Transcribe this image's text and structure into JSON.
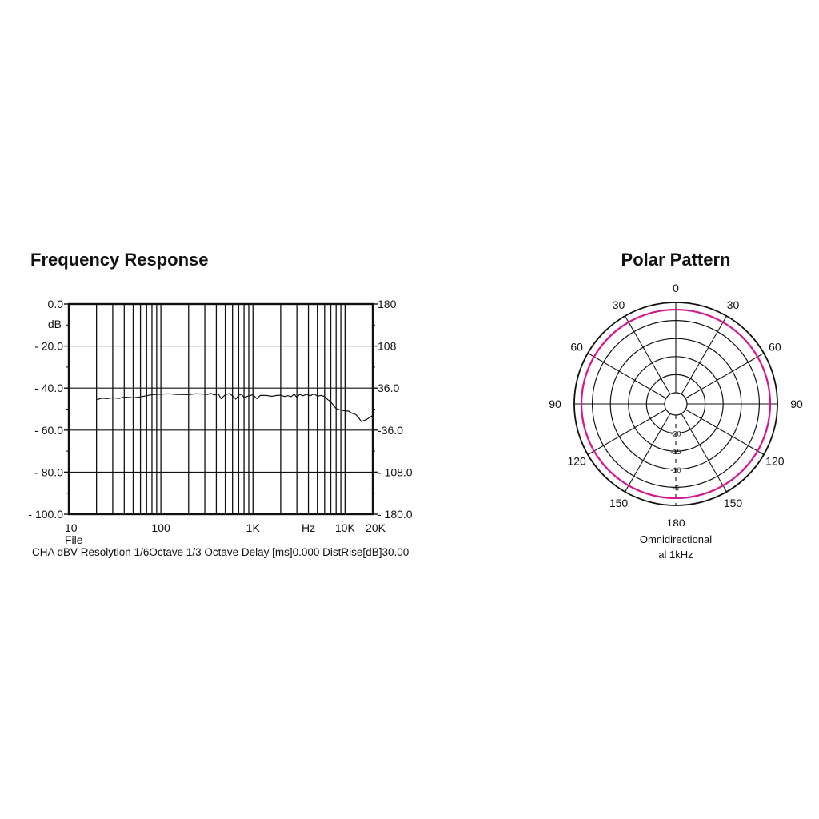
{
  "frequency_response": {
    "title": "Frequency Response",
    "footer": "CHA dBV Resolytion 1/6Octave 1/3 Octave Delay [ms]0.000 DistRise[dB]30.00",
    "file_label": "File"
  },
  "polar_pattern": {
    "title": "Polar Pattern",
    "caption_line1": "Omnidirectional",
    "caption_line2": "al 1kHz"
  },
  "chart_data": [
    {
      "type": "line",
      "title": "Frequency Response",
      "xscale": "log",
      "xlim": [
        10,
        20000
      ],
      "ylim": [
        -100,
        0
      ],
      "ylabel": "dB",
      "x_tick_labels": [
        "10",
        "100",
        "1K",
        "Hz",
        "10K",
        "20K"
      ],
      "y_tick_labels": [
        "0.0",
        "- 20.0",
        "- 40.0",
        "- 60.0",
        "- 80.0",
        "- 100.0"
      ],
      "y2_tick_labels": [
        "180",
        "108",
        "36.0",
        "-36.0",
        "- 108.0",
        "- 180.0"
      ],
      "y2lim": [
        -180,
        180
      ],
      "grid": true,
      "series": [
        {
          "x": [
            20,
            23,
            26,
            30,
            35,
            40,
            50,
            60,
            70,
            80,
            100,
            120,
            150,
            200,
            240,
            280,
            320,
            350,
            380,
            420,
            450,
            500,
            550,
            600,
            650,
            700,
            750,
            800,
            900,
            1000,
            1100,
            1200,
            1400,
            1600,
            1800,
            2000,
            2200,
            2400,
            2600,
            2800,
            3000,
            3200,
            3500,
            3800,
            4200,
            4600,
            5000,
            5500,
            6000,
            6500,
            7000,
            7500,
            8000,
            9000,
            10000,
            11000,
            12000,
            13000,
            14000,
            15000,
            17000,
            20000
          ],
          "y": [
            -45.5,
            -44.8,
            -45.0,
            -44.6,
            -44.9,
            -44.3,
            -44.6,
            -44.2,
            -43.6,
            -43.1,
            -42.9,
            -42.7,
            -43.0,
            -43.1,
            -42.7,
            -42.8,
            -43.0,
            -42.5,
            -43.3,
            -42.7,
            -45.0,
            -43.2,
            -42.6,
            -43.6,
            -45.2,
            -43.4,
            -43.0,
            -44.4,
            -43.7,
            -43.1,
            -45.0,
            -43.5,
            -43.5,
            -43.9,
            -43.5,
            -43.4,
            -44.0,
            -43.6,
            -44.1,
            -42.8,
            -44.5,
            -43.0,
            -43.6,
            -43.0,
            -43.6,
            -42.7,
            -43.8,
            -43.5,
            -44.0,
            -45.5,
            -46.5,
            -48.3,
            -49.8,
            -50.5,
            -50.8,
            -51.0,
            -52.1,
            -52.5,
            -54.0,
            -55.9,
            -55.0,
            -53.0
          ]
        }
      ]
    },
    {
      "type": "polar",
      "title": "Polar Pattern",
      "angle_labels": [
        "0",
        "30",
        "60",
        "90",
        "120",
        "150",
        "180",
        "150",
        "120",
        "90",
        "60",
        "30"
      ],
      "radial_labels": [
        "-20",
        "-15",
        "-10",
        "-5"
      ],
      "rlim": [
        -25,
        0
      ],
      "series": [
        {
          "color": "#d6168f",
          "level_db": -2
        }
      ]
    }
  ]
}
